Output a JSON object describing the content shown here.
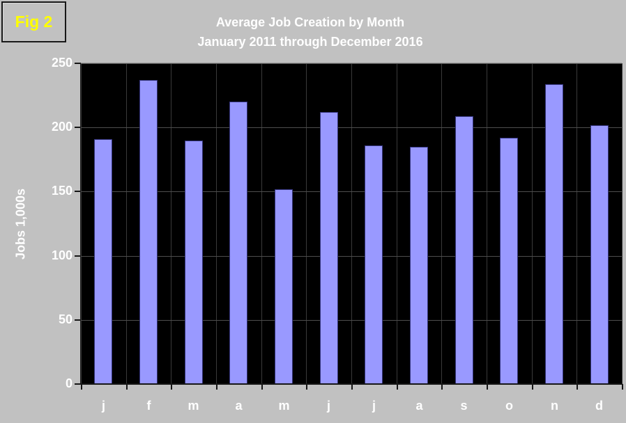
{
  "fig_label": "Fig 2",
  "chart_data": {
    "type": "bar",
    "title": "Average Job Creation by Month",
    "subtitle": "January 2011 through December 2016",
    "ylabel": "Jobs 1,000s",
    "xlabel": "",
    "categories": [
      "j",
      "f",
      "m",
      "a",
      "m",
      "j",
      "j",
      "a",
      "s",
      "o",
      "n",
      "d"
    ],
    "values": [
      191,
      237,
      190,
      220,
      152,
      212,
      186,
      185,
      209,
      192,
      234,
      202
    ],
    "ylim": [
      0,
      250
    ],
    "yticks": [
      0,
      50,
      100,
      150,
      200,
      250
    ],
    "grid": "horizontal gridlines at each y tick plus vertical category separators",
    "legend": "none",
    "colors": {
      "background": "#c1c1c1",
      "plot_background": "#000000",
      "bar_fill": "#9999ff",
      "bar_border": "#35357d",
      "gridline": "#4e4e4e",
      "title_text": "#ffffff",
      "axis_text": "#ffffff",
      "fig_label_text": "#ffff00"
    }
  }
}
